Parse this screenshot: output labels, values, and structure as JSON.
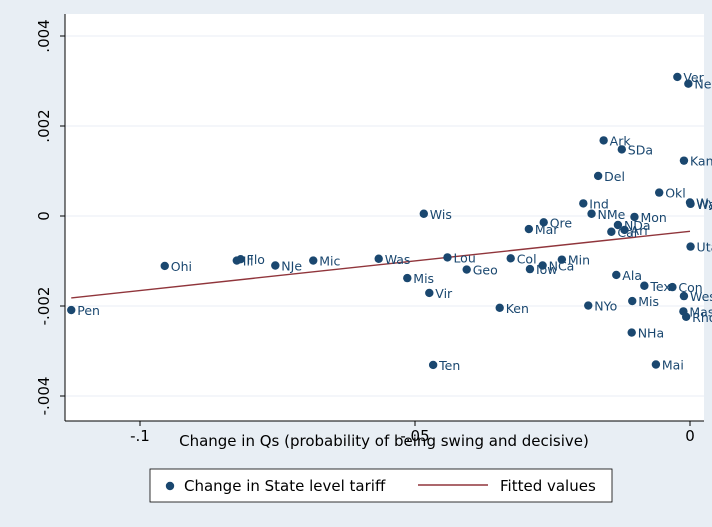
{
  "chart_data": {
    "type": "scatter",
    "title": "",
    "xlabel": "Change in Qs (probability of being swing and decisive)",
    "ylabel": "",
    "xlim": [
      -1.13,
      0.003
    ],
    "ylim": [
      -0.00425,
      0.00408
    ],
    "x_ticks": [
      -0.1,
      -0.05,
      0
    ],
    "x_tick_labels": [
      "-.1",
      "-.05",
      "0"
    ],
    "y_ticks": [
      -0.004,
      -0.002,
      0,
      0.002,
      0.004
    ],
    "y_tick_labels": [
      "-.004",
      "-.002",
      "0",
      ".002",
      ".004"
    ],
    "grid": true,
    "legend_position": "bottom",
    "colors": {
      "points": "#1a476f",
      "fit": "#90353b",
      "plot_bg": "#ffffff",
      "outer_bg": "#e8eef4",
      "grid": "#e8eef4"
    },
    "series": [
      {
        "name": "Change in State level tariff",
        "kind": "scatter",
        "points": [
          {
            "label": "Pen",
            "x": -0.1125,
            "y": -0.00209
          },
          {
            "label": "Ohi",
            "x": -0.0955,
            "y": -0.00111
          },
          {
            "label": "Flo",
            "x": -0.0817,
            "y": -0.00096
          },
          {
            "label": "Ill",
            "x": -0.0824,
            "y": -0.00099
          },
          {
            "label": "NJe",
            "x": -0.0754,
            "y": -0.0011
          },
          {
            "label": "Mic",
            "x": -0.0685,
            "y": -0.00099
          },
          {
            "label": "Was",
            "x": -0.0566,
            "y": -0.00095
          },
          {
            "label": "Mis",
            "x": -0.0514,
            "y": -0.00138
          },
          {
            "label": "Wis",
            "x": -0.0484,
            "y": 5e-05
          },
          {
            "label": "Vir",
            "x": -0.0474,
            "y": -0.00171
          },
          {
            "label": "Lou",
            "x": -0.0441,
            "y": -0.00092
          },
          {
            "label": "Ten",
            "x": -0.0467,
            "y": -0.00331
          },
          {
            "label": "Geo",
            "x": -0.0406,
            "y": -0.00119
          },
          {
            "label": "Ken",
            "x": -0.0346,
            "y": -0.00204
          },
          {
            "label": "Col",
            "x": -0.0326,
            "y": -0.00094
          },
          {
            "label": "Iow",
            "x": -0.0291,
            "y": -0.00118
          },
          {
            "label": "Mar",
            "x": -0.0293,
            "y": -0.00029
          },
          {
            "label": "Ore",
            "x": -0.0266,
            "y": -0.00014
          },
          {
            "label": "NCa",
            "x": -0.0268,
            "y": -0.0011
          },
          {
            "label": "Min",
            "x": -0.0233,
            "y": -0.00097
          },
          {
            "label": "Ind",
            "x": -0.0194,
            "y": 0.00028
          },
          {
            "label": "NYo",
            "x": -0.0185,
            "y": -0.00199
          },
          {
            "label": "NMe",
            "x": -0.0179,
            "y": 5e-05
          },
          {
            "label": "Del",
            "x": -0.0167,
            "y": 0.00089
          },
          {
            "label": "Ark",
            "x": -0.0157,
            "y": 0.00168
          },
          {
            "label": "Ala",
            "x": -0.0134,
            "y": -0.00131
          },
          {
            "label": "NDa",
            "x": -0.0131,
            "y": -0.0002
          },
          {
            "label": "SDa",
            "x": -0.0124,
            "y": 0.00148
          },
          {
            "label": "Ari",
            "x": -0.0119,
            "y": -0.00031
          },
          {
            "label": "Cal",
            "x": -0.0143,
            "y": -0.00035
          },
          {
            "label": "Mis",
            "x": -0.0105,
            "y": -0.00189
          },
          {
            "label": "NHa",
            "x": -0.0106,
            "y": -0.00259
          },
          {
            "label": "Mon",
            "x": -0.0101,
            "y": -2e-05
          },
          {
            "label": "Tex",
            "x": -0.0083,
            "y": -0.00155
          },
          {
            "label": "Okl",
            "x": -0.0056,
            "y": 0.00052
          },
          {
            "label": "Mai",
            "x": -0.0062,
            "y": -0.0033
          },
          {
            "label": "Con",
            "x": -0.0032,
            "y": -0.00158
          },
          {
            "label": "Ver",
            "x": -0.0023,
            "y": 0.00309
          },
          {
            "label": "Kan",
            "x": -0.0011,
            "y": 0.00123
          },
          {
            "label": "Wes",
            "x": -0.0011,
            "y": -0.00178
          },
          {
            "label": "Mas",
            "x": -0.0012,
            "y": -0.00212
          },
          {
            "label": "Rho",
            "x": -0.0007,
            "y": -0.00224
          },
          {
            "label": "Neb",
            "x": -0.0003,
            "y": 0.00294
          },
          {
            "label": "Wyo",
            "x": 0.0,
            "y": 0.0003
          },
          {
            "label": "Was",
            "x": 0.0001,
            "y": 0.00027
          },
          {
            "label": "Uta",
            "x": 0.0001,
            "y": -0.00068
          }
        ]
      },
      {
        "name": "Fitted values",
        "kind": "line",
        "x": [
          -0.1125,
          0.0
        ],
        "y": [
          -0.00182,
          -0.00034
        ]
      }
    ]
  }
}
